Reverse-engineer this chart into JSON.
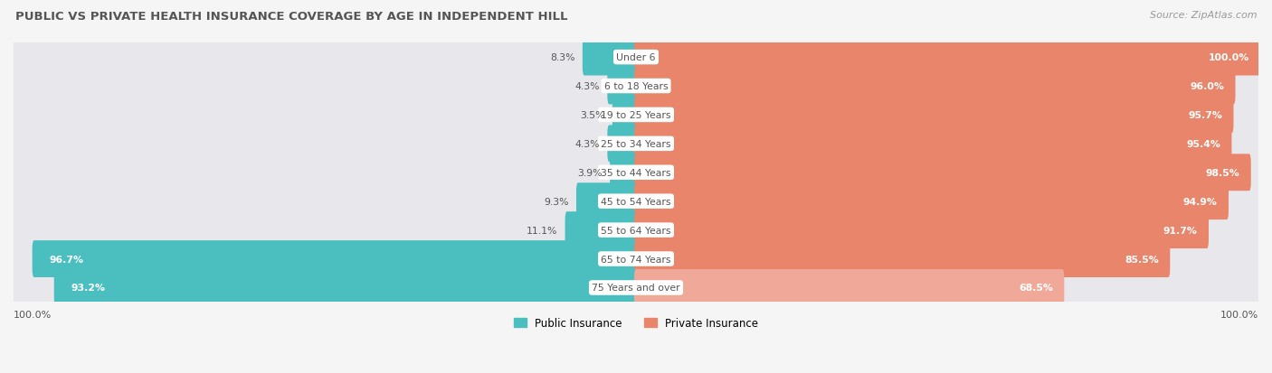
{
  "title": "PUBLIC VS PRIVATE HEALTH INSURANCE COVERAGE BY AGE IN INDEPENDENT HILL",
  "source": "Source: ZipAtlas.com",
  "categories": [
    "Under 6",
    "6 to 18 Years",
    "19 to 25 Years",
    "25 to 34 Years",
    "35 to 44 Years",
    "45 to 54 Years",
    "55 to 64 Years",
    "65 to 74 Years",
    "75 Years and over"
  ],
  "public_values": [
    8.3,
    4.3,
    3.5,
    4.3,
    3.9,
    9.3,
    11.1,
    96.7,
    93.2
  ],
  "private_values": [
    100.0,
    96.0,
    95.7,
    95.4,
    98.5,
    94.9,
    91.7,
    85.5,
    68.5
  ],
  "public_color": "#4bbfc0",
  "private_color": "#e8856a",
  "private_color_light": "#f0a898",
  "row_bg_color": "#e8e8ec",
  "white_color": "#ffffff",
  "text_color_dark": "#555555",
  "text_color_light": "#ffffff",
  "title_color": "#555555",
  "source_color": "#999999",
  "legend_label_public": "Public Insurance",
  "legend_label_private": "Private Insurance",
  "x_left_label": "100.0%",
  "x_right_label": "100.0%",
  "fig_bg": "#f5f5f5"
}
